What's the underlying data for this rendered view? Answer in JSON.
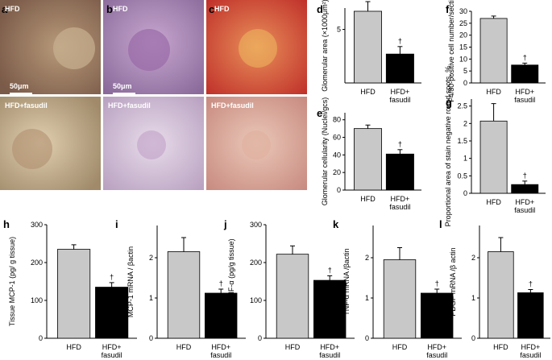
{
  "micrographs": [
    {
      "label": "a",
      "top": "HFD",
      "bottom": "HFD+fasudil",
      "scale": "50μm"
    },
    {
      "label": "b",
      "top": "HFD",
      "bottom": "HFD+fasudil",
      "scale": "50μm"
    },
    {
      "label": "c",
      "top": "HFD",
      "bottom": "HFD+fasudil"
    }
  ],
  "chart_data": [
    {
      "type": "bar",
      "label": "d",
      "y_label": "Glomerular area (×1000μm²)",
      "categories": [
        "HFD",
        "HFD+ fasudil"
      ],
      "values": [
        6.7,
        2.7
      ],
      "errors": [
        0.9,
        0.7
      ],
      "colors": [
        "#c8c8c8",
        "#000000"
      ],
      "annotation": "†",
      "ylim": [
        0,
        7
      ],
      "yticks": [
        5
      ]
    },
    {
      "type": "bar",
      "label": "e",
      "y_label": "Glomerular cellularity (Nuclei/gcs)",
      "categories": [
        "HFD",
        "HFD+ fasudil"
      ],
      "values": [
        70,
        41
      ],
      "errors": [
        4,
        5
      ],
      "colors": [
        "#c8c8c8",
        "#000000"
      ],
      "annotation": "†",
      "ylim": [
        0,
        88
      ],
      "yticks": [
        0,
        20,
        40,
        60,
        80
      ]
    },
    {
      "type": "bar",
      "label": "f",
      "y_label": "F4/80-positive cell number/section",
      "categories": [
        "HFD",
        "HFD+ fasudil"
      ],
      "values": [
        27,
        7.5
      ],
      "errors": [
        1,
        0.8
      ],
      "colors": [
        "#c8c8c8",
        "#000000"
      ],
      "annotation": "†",
      "ylim": [
        0,
        30
      ],
      "yticks": [
        0,
        5,
        10,
        15,
        20,
        25,
        30
      ]
    },
    {
      "type": "bar",
      "label": "g",
      "y_label": "Proportional area of stain negative round spots, %",
      "categories": [
        "HFD",
        "HFD+ fasudil"
      ],
      "values": [
        2.07,
        0.25
      ],
      "errors": [
        0.5,
        0.1
      ],
      "colors": [
        "#c8c8c8",
        "#000000"
      ],
      "annotation": "†",
      "ylim": [
        0,
        2.7
      ],
      "yticks": [
        0,
        0.5,
        1,
        1.5,
        2,
        2.5
      ]
    },
    {
      "type": "bar",
      "label": "h",
      "y_label": "Tissue MCP-1 (pg/ g tissue)",
      "categories": [
        "HFD",
        "HFD+ fasudil"
      ],
      "values": [
        235,
        135
      ],
      "errors": [
        12,
        12
      ],
      "colors": [
        "#c8c8c8",
        "#000000"
      ],
      "annotation": "†",
      "ylim": [
        0,
        300
      ],
      "yticks": [
        0,
        100,
        200,
        300
      ]
    },
    {
      "type": "bar",
      "label": "i",
      "y_label": "MCP-1 mRNA / βactin",
      "categories": [
        "HFD",
        "HFD+ fasudil"
      ],
      "values": [
        2.15,
        1.12
      ],
      "errors": [
        0.35,
        0.1
      ],
      "colors": [
        "#c8c8c8",
        "#000000"
      ],
      "annotation": "†",
      "ylim": [
        0,
        2.8
      ],
      "yticks": [
        0,
        1,
        2
      ]
    },
    {
      "type": "bar",
      "label": "j",
      "y_label": "Tissue TNF-α (pg/g tissue)",
      "categories": [
        "HFD",
        "HFD+ fasudil"
      ],
      "values": [
        222,
        153
      ],
      "errors": [
        22,
        12
      ],
      "colors": [
        "#c8c8c8",
        "#000000"
      ],
      "annotation": "†",
      "ylim": [
        0,
        300
      ],
      "yticks": [
        0,
        100,
        200,
        300
      ]
    },
    {
      "type": "bar",
      "label": "k",
      "y_label": "TNF-α mRNA /βactin",
      "categories": [
        "HFD",
        "HFD+ fasudil"
      ],
      "values": [
        1.95,
        1.12
      ],
      "errors": [
        0.3,
        0.1
      ],
      "colors": [
        "#c8c8c8",
        "#000000"
      ],
      "annotation": "†",
      "ylim": [
        0,
        2.8
      ],
      "yticks": [
        0,
        1,
        2
      ]
    },
    {
      "type": "bar",
      "label": "l",
      "y_label": "PDGF mRNA /β actin",
      "categories": [
        "HFD",
        "HFD+ fasudil"
      ],
      "values": [
        2.15,
        1.13
      ],
      "errors": [
        0.35,
        0.08
      ],
      "colors": [
        "#c8c8c8",
        "#000000"
      ],
      "annotation": "†",
      "ylim": [
        0,
        2.8
      ],
      "yticks": [
        0,
        1,
        2
      ]
    }
  ]
}
